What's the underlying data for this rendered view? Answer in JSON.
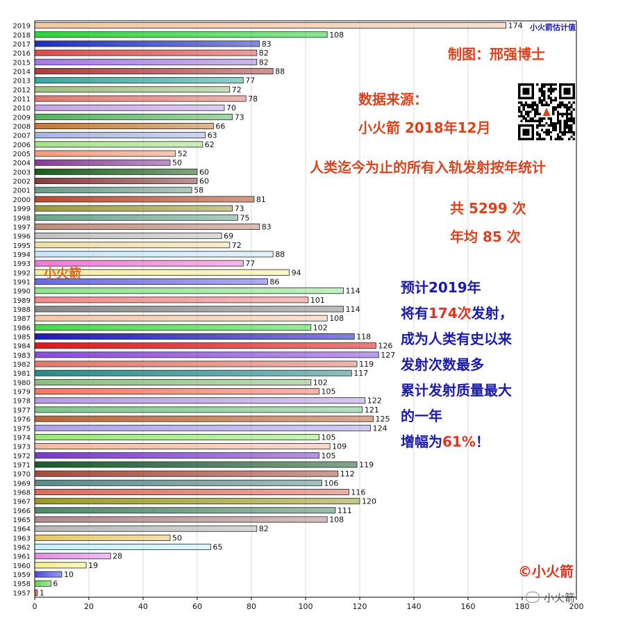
{
  "chart_data": {
    "type": "bar",
    "orientation": "horizontal",
    "categories": [
      "2019",
      "2018",
      "2017",
      "2016",
      "2015",
      "2014",
      "2013",
      "2012",
      "2011",
      "2010",
      "2009",
      "2008",
      "2007",
      "2006",
      "2005",
      "2004",
      "2003",
      "2002",
      "2001",
      "2000",
      "1999",
      "1998",
      "1997",
      "1996",
      "1995",
      "1994",
      "1993",
      "1992",
      "1991",
      "1990",
      "1989",
      "1988",
      "1987",
      "1986",
      "1985",
      "1984",
      "1983",
      "1982",
      "1981",
      "1980",
      "1979",
      "1978",
      "1977",
      "1976",
      "1975",
      "1974",
      "1973",
      "1972",
      "1971",
      "1970",
      "1969",
      "1968",
      "1967",
      "1966",
      "1965",
      "1964",
      "1963",
      "1962",
      "1961",
      "1960",
      "1959",
      "1958",
      "1957"
    ],
    "values": [
      174,
      108,
      83,
      82,
      82,
      88,
      77,
      72,
      78,
      70,
      73,
      66,
      63,
      62,
      52,
      50,
      60,
      60,
      58,
      81,
      73,
      75,
      83,
      69,
      72,
      88,
      77,
      94,
      86,
      114,
      101,
      114,
      108,
      102,
      118,
      126,
      127,
      119,
      117,
      102,
      105,
      122,
      121,
      125,
      124,
      105,
      109,
      105,
      119,
      112,
      106,
      116,
      120,
      111,
      108,
      82,
      50,
      65,
      28,
      19,
      10,
      6,
      1
    ],
    "colors": [
      "#f3c6a3",
      "#2fd33a",
      "#1d2fc2",
      "#e04a4a",
      "#a47be0",
      "#b23a3a",
      "#3aa6a0",
      "#9ec07a",
      "#e07a70",
      "#c6a3e8",
      "#4fb85a",
      "#c07a3a",
      "#a3b4e8",
      "#a3e08a",
      "#f39a7a",
      "#8a3a9a",
      "#1a5a1a",
      "#8a3a3a",
      "#6a9a8a",
      "#b84a2a",
      "#9a9a3a",
      "#6aa68a",
      "#c08a7a",
      "#c0c0c0",
      "#f0e0a0",
      "#c8e8f8",
      "#f07ad8",
      "#f8ee9a",
      "#6a6ae0",
      "#8ae88a",
      "#f08a8a",
      "#8a8a8a",
      "#f8c8a8",
      "#4ad84a",
      "#1a1ac8",
      "#d81a1a",
      "#8a4ae0",
      "#e07a6a",
      "#2a8a8a",
      "#8ac07a",
      "#f07a6a",
      "#b89ae8",
      "#7ac88a",
      "#b8683a",
      "#b0a0f0",
      "#9ae87a",
      "#f8b8a0",
      "#7a3ac8",
      "#1a5a2a",
      "#a84a3a",
      "#5a8a8a",
      "#e06a5a",
      "#9a9a2a",
      "#4a8a6a",
      "#b08a8a",
      "#b8b8b8",
      "#e8c860",
      "#c8f0f8",
      "#e888e8",
      "#f8f088",
      "#4a4ae8",
      "#5ad84a",
      "#d84a3a"
    ],
    "xlim": [
      0,
      200
    ],
    "xticks": [
      0,
      20,
      40,
      60,
      80,
      100,
      120,
      140,
      160,
      180,
      200
    ],
    "grid": "vertical",
    "legend": "none",
    "title": "",
    "xlabel": "",
    "ylabel": ""
  },
  "annotations": {
    "estimate_label": "小火箭估计值",
    "author": "制图：邢强博士",
    "source_label": "数据来源：",
    "source_value": "小火箭 2018年12月",
    "headline": "人类迄今为止的所有入轨发射按年统计",
    "total": "共 5299 次",
    "average": "年均 85 次",
    "watermark": "小火箭",
    "note": {
      "l1": "预计2019年",
      "l2a": "将有",
      "l2b": "174次",
      "l2c": "发射，",
      "l3": "成为人类有史以来",
      "l4": "发射次数最多",
      "l5": "累计发射质量最大",
      "l6": "的一年",
      "l7a": "增幅为",
      "l7b": "61%",
      "l7c": "！"
    },
    "copyright": "©小火箭",
    "wechat": "小火箭"
  },
  "icons": {
    "qr": "qr-code-icon",
    "wechat": "wechat-icon"
  }
}
